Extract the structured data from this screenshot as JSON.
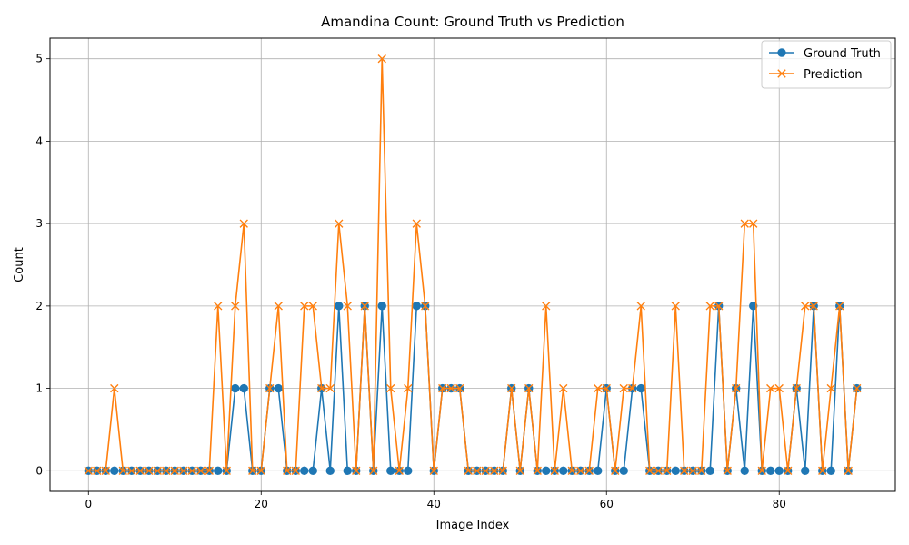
{
  "chart_data": {
    "type": "line",
    "title": "Amandina Count: Ground Truth vs Prediction",
    "xlabel": "Image Index",
    "ylabel": "Count",
    "xlim": [
      -4.45,
      93.45
    ],
    "ylim": [
      -0.25,
      5.25
    ],
    "xticks": [
      0,
      20,
      40,
      60,
      80
    ],
    "yticks": [
      0,
      1,
      2,
      3,
      4,
      5
    ],
    "grid": true,
    "legend_position": "top-right",
    "series": [
      {
        "name": "Ground Truth",
        "color": "#1f77b4",
        "marker": "circle",
        "values": [
          0,
          0,
          0,
          0,
          0,
          0,
          0,
          0,
          0,
          0,
          0,
          0,
          0,
          0,
          0,
          0,
          0,
          1,
          1,
          0,
          0,
          1,
          1,
          0,
          0,
          0,
          0,
          1,
          0,
          2,
          0,
          0,
          2,
          0,
          2,
          0,
          0,
          0,
          2,
          2,
          0,
          1,
          1,
          1,
          0,
          0,
          0,
          0,
          0,
          1,
          0,
          1,
          0,
          0,
          0,
          0,
          0,
          0,
          0,
          0,
          1,
          0,
          0,
          1,
          1,
          0,
          0,
          0,
          0,
          0,
          0,
          0,
          0,
          2,
          0,
          1,
          0,
          2,
          0,
          0,
          0,
          0,
          1,
          0,
          2,
          0,
          0,
          2,
          0,
          1
        ]
      },
      {
        "name": "Prediction",
        "color": "#ff7f0e",
        "marker": "x",
        "values": [
          0,
          0,
          0,
          1,
          0,
          0,
          0,
          0,
          0,
          0,
          0,
          0,
          0,
          0,
          0,
          2,
          0,
          2,
          3,
          0,
          0,
          1,
          2,
          0,
          0,
          2,
          2,
          1,
          1,
          3,
          2,
          0,
          2,
          0,
          5,
          1,
          0,
          1,
          3,
          2,
          0,
          1,
          1,
          1,
          0,
          0,
          0,
          0,
          0,
          1,
          0,
          1,
          0,
          2,
          0,
          1,
          0,
          0,
          0,
          1,
          1,
          0,
          1,
          1,
          2,
          0,
          0,
          0,
          2,
          0,
          0,
          0,
          2,
          2,
          0,
          1,
          3,
          3,
          0,
          1,
          1,
          0,
          1,
          2,
          2,
          0,
          1,
          2,
          0,
          1
        ]
      }
    ]
  }
}
